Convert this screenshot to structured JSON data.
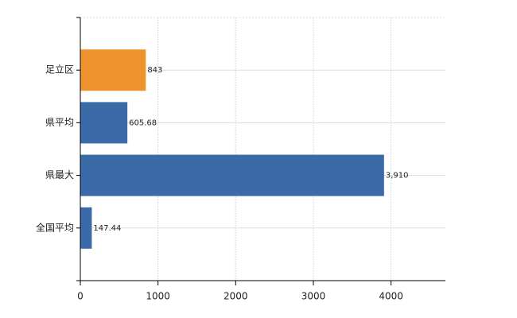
{
  "chart_data": {
    "type": "hbar",
    "categories": [
      "足立区",
      "県平均",
      "県最大",
      "全国平均"
    ],
    "values": [
      843,
      605.68,
      3910,
      147.44
    ],
    "value_labels": [
      "843",
      "605.68",
      "3,910",
      "147.44"
    ],
    "colors": [
      "#f0922e",
      "#3a6aa8",
      "#3a6aa8",
      "#3a6aa8"
    ],
    "xlim": [
      0,
      4700
    ],
    "xticks": [
      0,
      1000,
      2000,
      3000,
      4000
    ],
    "grid": true
  }
}
